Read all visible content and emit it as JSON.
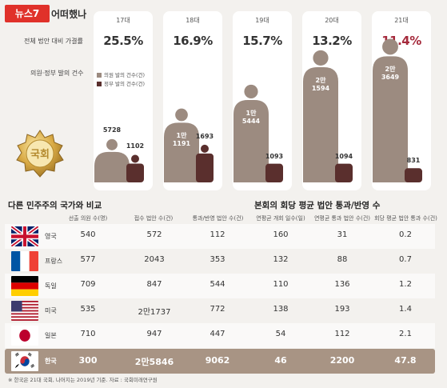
{
  "header": {
    "badge": "뉴스7",
    "title": "어떠했나"
  },
  "chart_data": [
    {
      "type": "bar",
      "categories": [
        "17대",
        "18대",
        "19대",
        "20대",
        "21대"
      ],
      "row_labels": {
        "rate": "전체 법안 대비 가결률",
        "counts": "의원·정부 발의 건수"
      },
      "series": [
        {
          "name": "의원 발의 건수(건)",
          "color": "#9c8b80",
          "values": [
            5728,
            11191,
            15444,
            21594,
            23649
          ]
        },
        {
          "name": "정부 발의 건수(건)",
          "color": "#5a2f2d",
          "values": [
            1102,
            1693,
            1093,
            1094,
            831
          ]
        }
      ],
      "value_labels": {
        "member": [
          "5728",
          "1만\n1191",
          "1만\n5444",
          "2만\n1594",
          "2만\n3649"
        ],
        "gov": [
          "1102",
          "1693",
          "1093",
          "1094",
          "831"
        ]
      },
      "rates": [
        "25.5%",
        "16.9%",
        "15.7%",
        "13.2%",
        "11.4%"
      ],
      "highlight_index": 4,
      "ylim": [
        0,
        24000
      ]
    },
    {
      "type": "table",
      "titles": [
        "다른 민주주의 국가와 비교",
        "본회의 회당 평균 법안 통과/반영 수"
      ],
      "columns": [
        "선출 의원 수(명)",
        "접수 법안 수(건)",
        "통과/반영 법안 수(건)",
        "연평균 개회 일수(일)",
        "연평균 통과 법안 수(건)",
        "회당 평균 법안 통과 수(건)"
      ],
      "rows": [
        {
          "country": "영국",
          "flag": "uk",
          "values": [
            "540",
            "572",
            "112",
            "160",
            "31",
            "0.2"
          ]
        },
        {
          "country": "프랑스",
          "flag": "fr",
          "values": [
            "577",
            "2043",
            "353",
            "132",
            "88",
            "0.7"
          ]
        },
        {
          "country": "독일",
          "flag": "de",
          "values": [
            "709",
            "847",
            "544",
            "110",
            "136",
            "1.2"
          ]
        },
        {
          "country": "미국",
          "flag": "us",
          "values": [
            "535",
            "2만1737",
            "772",
            "138",
            "193",
            "1.4"
          ]
        },
        {
          "country": "일본",
          "flag": "jp",
          "values": [
            "710",
            "947",
            "447",
            "54",
            "112",
            "2.1"
          ]
        },
        {
          "country": "한국",
          "flag": "kr",
          "values": [
            "300",
            "2만5846",
            "9062",
            "46",
            "2200",
            "47.8"
          ]
        }
      ]
    }
  ],
  "emblem_text": "국회",
  "footnote": "※ 한국은 21대 국회, 나머지는 2019년 기준. 자료 : 국회미래연구원"
}
